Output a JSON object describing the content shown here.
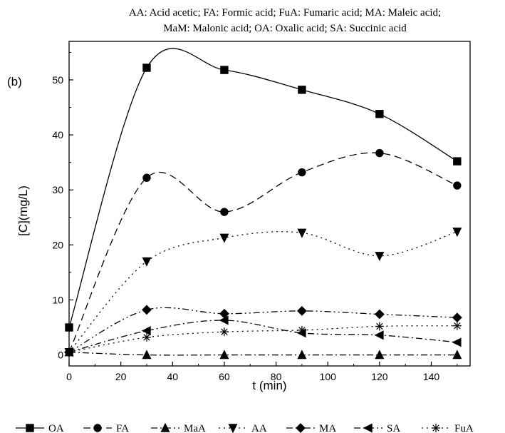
{
  "chart_data": {
    "type": "line",
    "title_lines": [
      "AA: Acid acetic; FA: Formic acid; FuA: Fumaric acid; MA: Maleic acid;",
      "MaM: Malonic acid; OA: Oxalic acid; SA: Succinic acid"
    ],
    "panel_label": "(b)",
    "xlabel": "t (min)",
    "ylabel": "[C](mg/L)",
    "xlim": [
      0,
      155
    ],
    "ylim": [
      -2,
      57
    ],
    "xticks": [
      0,
      20,
      40,
      60,
      80,
      100,
      120,
      140
    ],
    "yticks": [
      0,
      10,
      20,
      30,
      40,
      50
    ],
    "x": [
      0,
      30,
      60,
      90,
      120,
      150
    ],
    "legend_position": "bottom",
    "series": [
      {
        "name": "OA",
        "marker": "square",
        "dash": "solid",
        "values": [
          5.0,
          52.2,
          51.8,
          48.2,
          43.8,
          35.2
        ]
      },
      {
        "name": "FA",
        "marker": "circle",
        "dash": "dashed",
        "values": [
          0.5,
          32.2,
          26.0,
          33.2,
          36.7,
          30.8
        ]
      },
      {
        "name": "MaA",
        "marker": "triangle-up",
        "dash": "dashdot",
        "values": [
          0.5,
          0.0,
          0.0,
          0.0,
          0.0,
          0.0
        ]
      },
      {
        "name": "AA",
        "marker": "triangle-down",
        "dash": "dotted",
        "values": [
          0.5,
          17.0,
          21.3,
          22.2,
          18.0,
          22.4
        ]
      },
      {
        "name": "MA",
        "marker": "diamond",
        "dash": "dashdotdot",
        "values": [
          0.5,
          8.2,
          7.5,
          8.0,
          7.4,
          6.8
        ]
      },
      {
        "name": "SA",
        "marker": "triangle-left",
        "dash": "dashdot",
        "values": [
          0.5,
          4.4,
          6.3,
          4.0,
          3.6,
          2.3
        ]
      },
      {
        "name": "FuA",
        "marker": "asterisk",
        "dash": "dotted",
        "values": [
          0.5,
          3.2,
          4.2,
          4.5,
          5.2,
          5.3
        ]
      }
    ]
  }
}
